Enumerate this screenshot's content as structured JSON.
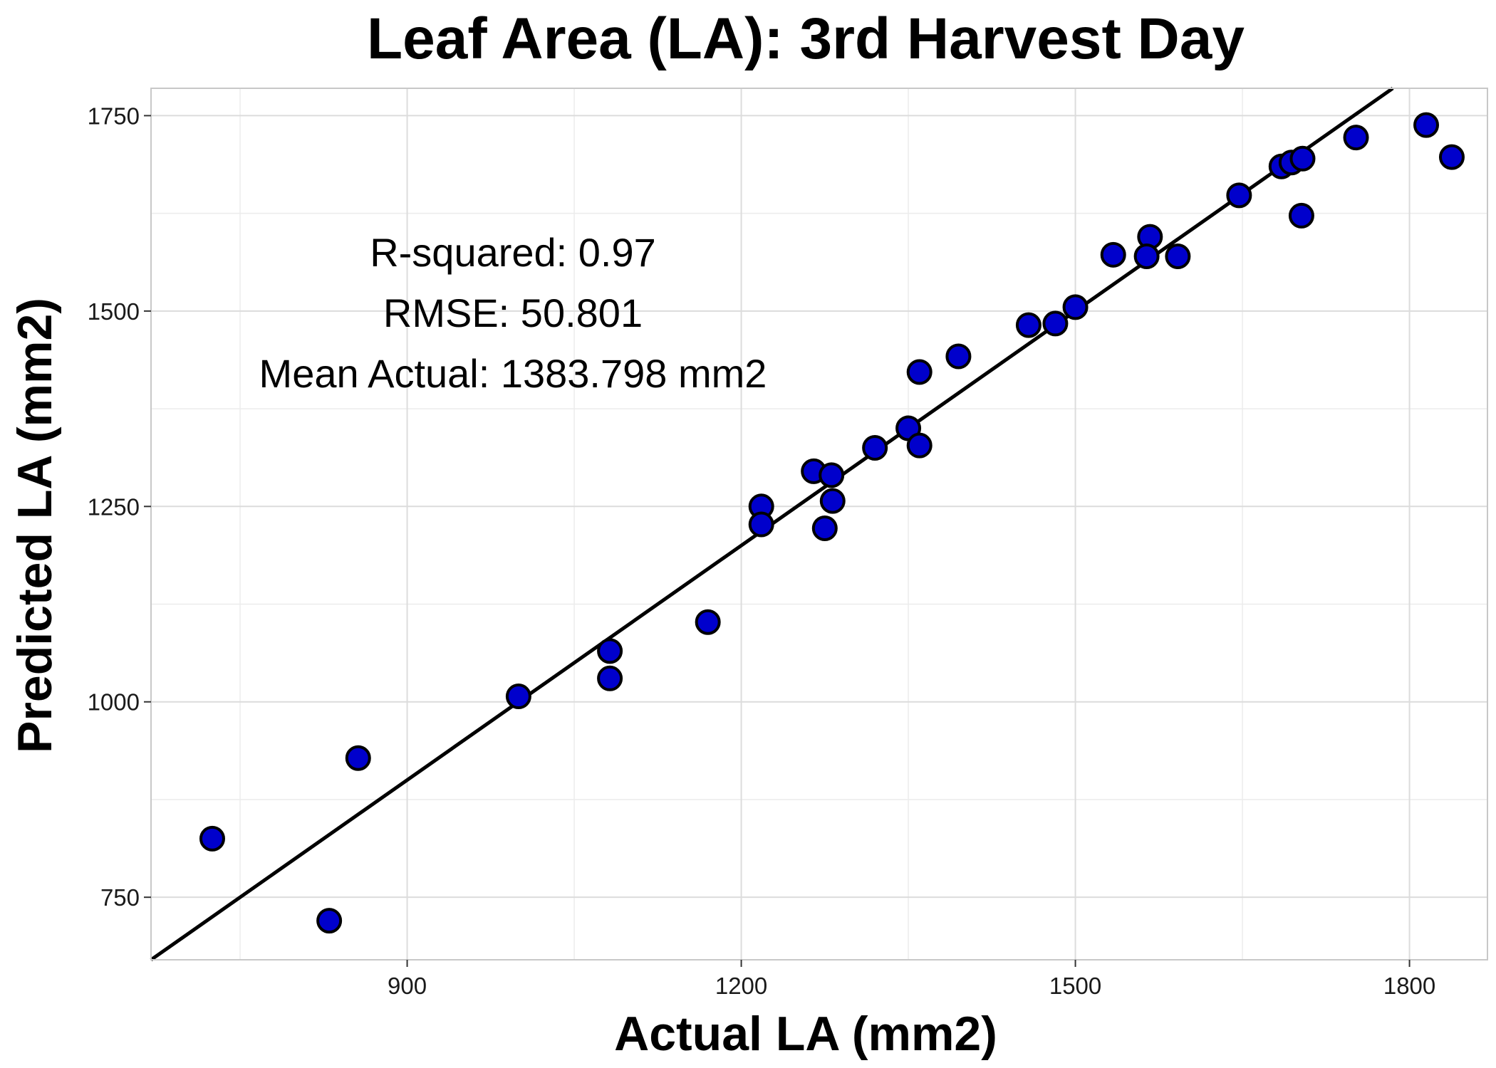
{
  "chart_data": {
    "type": "scatter",
    "title": "Leaf Area (LA): 3rd Harvest Day",
    "xlabel": "Actual LA (mm2)",
    "ylabel": "Predicted LA (mm2)",
    "xlim": [
      670,
      1870
    ],
    "ylim": [
      670,
      1785
    ],
    "x_ticks": [
      900,
      1200,
      1500,
      1800
    ],
    "y_ticks": [
      750,
      1000,
      1250,
      1500,
      1750
    ],
    "x_minor_ticks": [
      750,
      1050,
      1350,
      1650
    ],
    "y_minor_ticks": [
      875,
      1125,
      1375,
      1625
    ],
    "grid": true,
    "point_color": "#0000CC",
    "point_edge_color": "#000000",
    "line_color": "#000000",
    "reference_line": {
      "type": "identity",
      "slope": 1,
      "intercept": 0
    },
    "annotations": [
      "R-squared:  0.97",
      "RMSE:  50.801",
      "Mean Actual:  1383.798 mm2"
    ],
    "series": [
      {
        "points": [
          {
            "x": 725,
            "y": 825
          },
          {
            "x": 830,
            "y": 720
          },
          {
            "x": 856,
            "y": 928
          },
          {
            "x": 1000,
            "y": 1007
          },
          {
            "x": 1082,
            "y": 1065
          },
          {
            "x": 1082,
            "y": 1030
          },
          {
            "x": 1170,
            "y": 1102
          },
          {
            "x": 1218,
            "y": 1250
          },
          {
            "x": 1218,
            "y": 1227
          },
          {
            "x": 1265,
            "y": 1295
          },
          {
            "x": 1281,
            "y": 1290
          },
          {
            "x": 1282,
            "y": 1257
          },
          {
            "x": 1275,
            "y": 1222
          },
          {
            "x": 1320,
            "y": 1325
          },
          {
            "x": 1350,
            "y": 1350
          },
          {
            "x": 1360,
            "y": 1422
          },
          {
            "x": 1360,
            "y": 1328
          },
          {
            "x": 1395,
            "y": 1442
          },
          {
            "x": 1458,
            "y": 1482
          },
          {
            "x": 1482,
            "y": 1484
          },
          {
            "x": 1500,
            "y": 1505
          },
          {
            "x": 1534,
            "y": 1572
          },
          {
            "x": 1567,
            "y": 1595
          },
          {
            "x": 1564,
            "y": 1570
          },
          {
            "x": 1592,
            "y": 1570
          },
          {
            "x": 1647,
            "y": 1648
          },
          {
            "x": 1685,
            "y": 1685
          },
          {
            "x": 1694,
            "y": 1690
          },
          {
            "x": 1704,
            "y": 1695
          },
          {
            "x": 1703,
            "y": 1622
          },
          {
            "x": 1752,
            "y": 1722
          },
          {
            "x": 1815,
            "y": 1738
          },
          {
            "x": 1838,
            "y": 1697
          }
        ]
      }
    ]
  }
}
